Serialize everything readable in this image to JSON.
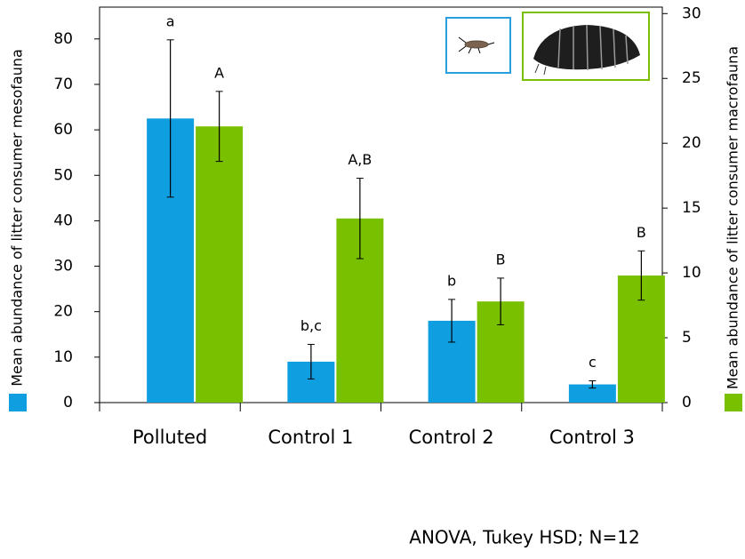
{
  "chart_data": {
    "type": "bar",
    "categories": [
      "Polluted",
      "Control 1",
      "Control 2",
      "Control 3"
    ],
    "series": [
      {
        "name": "Mean abundance of litter consumer mesofauna",
        "color": "#0f9ee0",
        "axis": "y",
        "values": [
          62.5,
          9,
          18,
          4
        ],
        "errors": [
          17.3,
          3.8,
          4.7,
          0.8
        ],
        "letters": [
          "a",
          "b,c",
          "b",
          "c"
        ]
      },
      {
        "name": "Mean abundance of litter consumer macrofauna",
        "color": "#78c000",
        "axis": "y2",
        "values": [
          21.3,
          14.2,
          7.8,
          9.8
        ],
        "errors": [
          2.7,
          3.1,
          1.8,
          1.9
        ],
        "letters": [
          "A",
          "A,B",
          "B",
          "B"
        ]
      }
    ],
    "ylim": [
      0,
      87
    ],
    "yticks": [
      0,
      10,
      20,
      30,
      40,
      50,
      60,
      70,
      80
    ],
    "y2lim": [
      0,
      30.5
    ],
    "y2ticks": [
      0,
      5,
      10,
      15,
      20,
      25,
      30
    ],
    "annotation": "ANOVA, Tukey HSD; N=12"
  }
}
